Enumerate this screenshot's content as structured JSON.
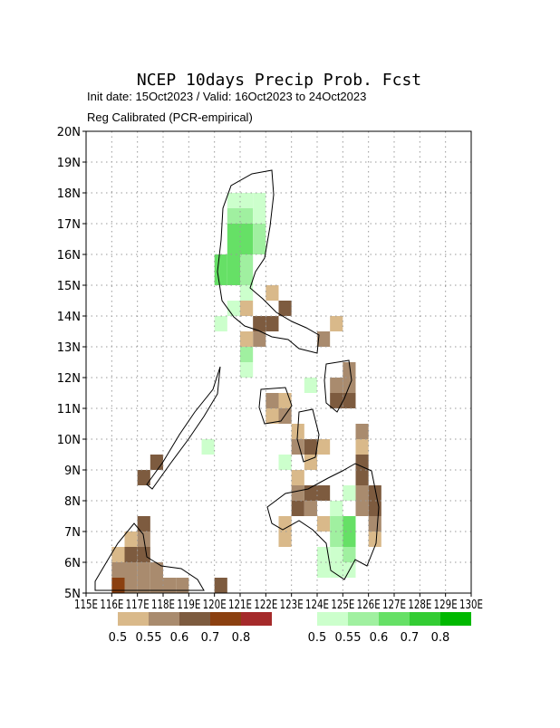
{
  "chart_data": {
    "type": "grid-map",
    "title": "NCEP 10days Precip Prob. Fcst",
    "subtitle": "Init date: 15Oct2023 / Valid: 16Oct2023 to 24Oct2023",
    "note": "Reg Calibrated (PCR-empirical)",
    "xlim": [
      115,
      130
    ],
    "ylim": [
      5,
      20
    ],
    "cell_size": 0.5,
    "xticks": [
      {
        "value": 115,
        "label": "115E"
      },
      {
        "value": 116,
        "label": "116E"
      },
      {
        "value": 117,
        "label": "117E"
      },
      {
        "value": 118,
        "label": "118E"
      },
      {
        "value": 119,
        "label": "119E"
      },
      {
        "value": 120,
        "label": "120E"
      },
      {
        "value": 121,
        "label": "121E"
      },
      {
        "value": 122,
        "label": "122E"
      },
      {
        "value": 123,
        "label": "123E"
      },
      {
        "value": 124,
        "label": "124E"
      },
      {
        "value": 125,
        "label": "125E"
      },
      {
        "value": 126,
        "label": "126E"
      },
      {
        "value": 127,
        "label": "127E"
      },
      {
        "value": 128,
        "label": "128E"
      },
      {
        "value": 129,
        "label": "129E"
      },
      {
        "value": 130,
        "label": "130E"
      }
    ],
    "yticks": [
      {
        "value": 5,
        "label": "5N"
      },
      {
        "value": 6,
        "label": "6N"
      },
      {
        "value": 7,
        "label": "7N"
      },
      {
        "value": 8,
        "label": "8N"
      },
      {
        "value": 9,
        "label": "9N"
      },
      {
        "value": 10,
        "label": "10N"
      },
      {
        "value": 11,
        "label": "11N"
      },
      {
        "value": 12,
        "label": "12N"
      },
      {
        "value": 13,
        "label": "13N"
      },
      {
        "value": 14,
        "label": "14N"
      },
      {
        "value": 15,
        "label": "15N"
      },
      {
        "value": 16,
        "label": "16N"
      },
      {
        "value": 17,
        "label": "17N"
      },
      {
        "value": 18,
        "label": "18N"
      },
      {
        "value": 19,
        "label": "19N"
      },
      {
        "value": 20,
        "label": "20N"
      }
    ],
    "grid": true,
    "series": [
      {
        "colors": [
          "#d9b98a",
          "#a98b6e",
          "#7d5b3f",
          "#8b4010",
          "#a52a2a"
        ],
        "legend": [
          0.5,
          0.55,
          0.6,
          0.7,
          0.8
        ],
        "cells": [
          [
            121.0,
            14.0,
            0.5
          ],
          [
            122.0,
            14.5,
            0.5
          ],
          [
            122.5,
            14.0,
            0.6
          ],
          [
            121.5,
            13.5,
            0.6
          ],
          [
            121.5,
            13.0,
            0.55
          ],
          [
            121.0,
            13.0,
            0.5
          ],
          [
            122.0,
            13.5,
            0.6
          ],
          [
            124.0,
            13.0,
            0.55
          ],
          [
            124.5,
            13.5,
            0.5
          ],
          [
            124.5,
            11.5,
            0.55
          ],
          [
            125.0,
            11.5,
            0.55
          ],
          [
            124.5,
            11.0,
            0.6
          ],
          [
            125.0,
            11.0,
            0.6
          ],
          [
            125.0,
            12.0,
            0.55
          ],
          [
            122.0,
            11.0,
            0.55
          ],
          [
            122.0,
            10.5,
            0.5
          ],
          [
            122.5,
            11.0,
            0.5
          ],
          [
            122.5,
            10.5,
            0.55
          ],
          [
            123.0,
            10.0,
            0.5
          ],
          [
            123.0,
            9.5,
            0.55
          ],
          [
            123.5,
            9.5,
            0.6
          ],
          [
            123.5,
            9.0,
            0.5
          ],
          [
            123.0,
            8.5,
            0.5
          ],
          [
            124.0,
            9.5,
            0.5
          ],
          [
            123.0,
            8.0,
            0.55
          ],
          [
            123.5,
            8.0,
            0.6
          ],
          [
            124.0,
            8.0,
            0.6
          ],
          [
            123.0,
            7.5,
            0.6
          ],
          [
            123.5,
            7.5,
            0.55
          ],
          [
            122.5,
            7.0,
            0.5
          ],
          [
            122.5,
            6.5,
            0.5
          ],
          [
            124.0,
            7.0,
            0.5
          ],
          [
            125.5,
            8.5,
            0.6
          ],
          [
            125.5,
            8.0,
            0.55
          ],
          [
            126.0,
            8.0,
            0.6
          ],
          [
            126.0,
            7.5,
            0.6
          ],
          [
            125.5,
            7.5,
            0.55
          ],
          [
            126.0,
            7.0,
            0.55
          ],
          [
            126.0,
            6.5,
            0.5
          ],
          [
            125.5,
            10.0,
            0.55
          ],
          [
            125.5,
            9.5,
            0.5
          ],
          [
            125.5,
            9.0,
            0.6
          ],
          [
            117.5,
            9.0,
            0.6
          ],
          [
            117.0,
            8.5,
            0.6
          ],
          [
            116.0,
            5.0,
            0.7
          ],
          [
            116.0,
            5.5,
            0.55
          ],
          [
            116.0,
            6.0,
            0.5
          ],
          [
            116.5,
            5.0,
            0.55
          ],
          [
            117.0,
            5.0,
            0.55
          ],
          [
            117.5,
            5.0,
            0.55
          ],
          [
            118.0,
            5.0,
            0.55
          ],
          [
            118.5,
            5.0,
            0.55
          ],
          [
            116.5,
            5.5,
            0.55
          ],
          [
            117.0,
            5.5,
            0.55
          ],
          [
            117.5,
            5.5,
            0.55
          ],
          [
            116.5,
            6.0,
            0.6
          ],
          [
            117.0,
            6.0,
            0.6
          ],
          [
            117.0,
            6.5,
            0.55
          ],
          [
            117.0,
            7.0,
            0.6
          ],
          [
            116.5,
            6.5,
            0.5
          ],
          [
            120.0,
            5.0,
            0.6
          ]
        ]
      },
      {
        "colors": [
          "#ccffcc",
          "#a0f0a0",
          "#66e066",
          "#33cc33",
          "#00b800"
        ],
        "legend": [
          0.5,
          0.55,
          0.6,
          0.7,
          0.8
        ],
        "cells": [
          [
            120.5,
            17.5,
            0.5
          ],
          [
            121.0,
            17.5,
            0.5
          ],
          [
            121.5,
            17.5,
            0.5
          ],
          [
            120.5,
            17.0,
            0.55
          ],
          [
            121.0,
            17.0,
            0.55
          ],
          [
            121.5,
            17.0,
            0.5
          ],
          [
            120.5,
            16.5,
            0.6
          ],
          [
            121.0,
            16.5,
            0.6
          ],
          [
            121.5,
            16.5,
            0.55
          ],
          [
            120.5,
            16.0,
            0.6
          ],
          [
            121.0,
            16.0,
            0.6
          ],
          [
            121.5,
            16.0,
            0.55
          ],
          [
            120.0,
            15.5,
            0.6
          ],
          [
            120.5,
            15.5,
            0.6
          ],
          [
            121.0,
            15.5,
            0.55
          ],
          [
            120.0,
            15.0,
            0.6
          ],
          [
            120.5,
            15.0,
            0.6
          ],
          [
            121.0,
            15.0,
            0.55
          ],
          [
            121.0,
            14.5,
            0.5
          ],
          [
            120.5,
            14.0,
            0.5
          ],
          [
            120.0,
            13.5,
            0.5
          ],
          [
            121.0,
            12.5,
            0.55
          ],
          [
            121.0,
            12.0,
            0.5
          ],
          [
            119.5,
            9.5,
            0.5
          ],
          [
            123.5,
            11.5,
            0.5
          ],
          [
            122.5,
            9.0,
            0.5
          ],
          [
            124.5,
            7.5,
            0.5
          ],
          [
            124.5,
            7.0,
            0.55
          ],
          [
            124.5,
            6.5,
            0.55
          ],
          [
            125.0,
            7.0,
            0.6
          ],
          [
            125.0,
            6.5,
            0.6
          ],
          [
            124.0,
            6.0,
            0.5
          ],
          [
            124.5,
            6.0,
            0.5
          ],
          [
            125.0,
            6.0,
            0.55
          ],
          [
            125.0,
            5.5,
            0.5
          ],
          [
            124.0,
            5.5,
            0.5
          ],
          [
            124.5,
            5.5,
            0.5
          ],
          [
            125.0,
            8.0,
            0.5
          ]
        ]
      }
    ]
  }
}
